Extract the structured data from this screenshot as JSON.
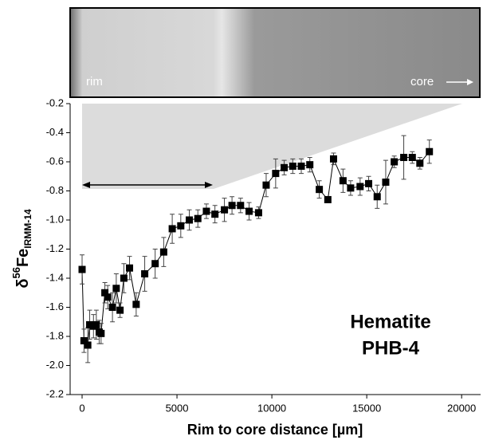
{
  "chart_data": {
    "type": "line",
    "image_labels": {
      "left": "rim",
      "right": "core"
    },
    "annotation": [
      "Hematite",
      "PHB-4"
    ],
    "x_label": "Rim to core distance [µm]",
    "y_label": {
      "symbol": "δ",
      "superscript": "56",
      "base": "Fe",
      "subscript": "IRMM-14"
    },
    "xlim": [
      -630,
      21000
    ],
    "xticks": [
      0,
      5000,
      10000,
      15000,
      20000
    ],
    "ylim": [
      -2.2,
      -0.2
    ],
    "yticks": [
      -0.2,
      -0.4,
      -0.6,
      -0.8,
      {
        "value": -1,
        "label": "-1.0"
      },
      -1.2,
      -1.4,
      -1.6,
      -1.8,
      {
        "value": -2,
        "label": "-2.0"
      },
      -2.2
    ],
    "series": [
      {
        "color": "#000000",
        "x": [
          0,
          100,
          300,
          400,
          600,
          750,
          900,
          1000,
          1200,
          1350,
          1600,
          1800,
          2000,
          2200,
          2500,
          2850,
          3300,
          3850,
          4300,
          4750,
          5200,
          5650,
          6100,
          6550,
          7000,
          7500,
          7900,
          8350,
          8800,
          9300,
          9700,
          10200,
          10650,
          11100,
          11550,
          12000,
          12500,
          12950,
          13250,
          13750,
          14150,
          14650,
          15100,
          15550,
          16000,
          16450,
          16950,
          17400,
          17800,
          18300
        ],
        "values": [
          -1.34,
          -1.83,
          -1.86,
          -1.72,
          -1.73,
          -1.72,
          -1.77,
          -1.78,
          -1.5,
          -1.53,
          -1.6,
          -1.47,
          -1.62,
          -1.4,
          -1.33,
          -1.58,
          -1.37,
          -1.3,
          -1.22,
          -1.06,
          -1.04,
          -1.0,
          -0.99,
          -0.94,
          -0.96,
          -0.93,
          -0.9,
          -0.9,
          -0.94,
          -0.95,
          -0.76,
          -0.68,
          -0.64,
          -0.63,
          -0.63,
          -0.62,
          -0.79,
          -0.86,
          -0.58,
          -0.73,
          -0.78,
          -0.77,
          -0.75,
          -0.84,
          -0.74,
          -0.6,
          -0.57,
          -0.57,
          -0.61,
          -0.53
        ],
        "errors": [
          0.1,
          0.08,
          0.12,
          0.1,
          0.08,
          0.1,
          0.08,
          0.07,
          0.07,
          0.08,
          0.1,
          0.1,
          0.05,
          0.1,
          0.08,
          0.08,
          0.12,
          0.1,
          0.1,
          0.1,
          0.08,
          0.07,
          0.06,
          0.05,
          0.06,
          0.08,
          0.06,
          0.05,
          0.06,
          0.04,
          0.08,
          0.1,
          0.05,
          0.05,
          0.05,
          0.05,
          0.06,
          0.02,
          0.04,
          0.08,
          0.05,
          0.06,
          0.05,
          0.08,
          0.15,
          0.04,
          0.15,
          0.04,
          0.04,
          0.08
        ]
      }
    ]
  }
}
